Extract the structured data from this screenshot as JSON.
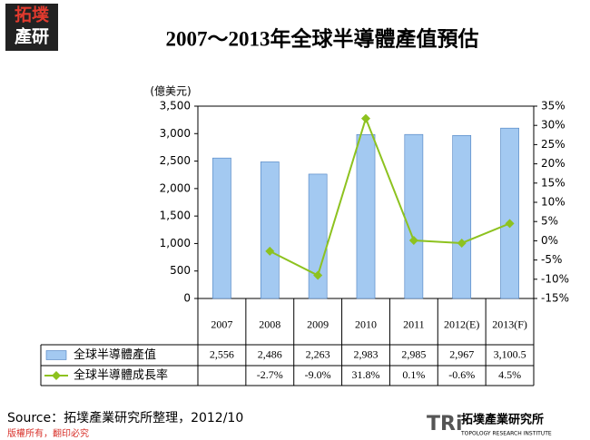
{
  "logo": [
    "拓墣",
    "產研"
  ],
  "chart_data": {
    "type": "bar-line",
    "title": "2007～2013年全球半導體產值預估",
    "y_label": "(億美元)",
    "categories": [
      "2007",
      "2008",
      "2009",
      "2010",
      "2011",
      "2012(E)",
      "2013(F)"
    ],
    "series": [
      {
        "name": "全球半導體產值",
        "type": "bar",
        "color": "#a3c9f1",
        "values": [
          2556,
          2486,
          2263,
          2983,
          2985,
          2967,
          3100.5
        ],
        "value_labels": [
          "2,556",
          "2,486",
          "2,263",
          "2,983",
          "2,985",
          "2,967",
          "3,100.5"
        ]
      },
      {
        "name": "全球半導體成長率",
        "type": "line",
        "axis": "y2",
        "color": "#8dc21f",
        "values": [
          null,
          -2.7,
          -9.0,
          31.8,
          0.1,
          -0.6,
          4.5
        ],
        "value_labels": [
          null,
          "-2.7%",
          "-9.0%",
          "31.8%",
          "0.1%",
          "-0.6%",
          "4.5%"
        ]
      }
    ],
    "ylim": [
      0,
      3500
    ],
    "yticks": [
      0,
      500,
      {
        "value": 1000,
        "label": "1,000"
      },
      {
        "value": 1500,
        "label": "1,500"
      },
      {
        "value": 2000,
        "label": "2,000"
      },
      {
        "value": 2500,
        "label": "2,500"
      },
      {
        "value": 3000,
        "label": "3,000"
      },
      {
        "value": 3500,
        "label": "3,500"
      }
    ],
    "y2lim": [
      -15,
      35
    ],
    "y2ticks": [
      {
        "value": -15,
        "label": "-15%"
      },
      {
        "value": -10,
        "label": "-10%"
      },
      {
        "value": -5,
        "label": "-5%"
      },
      {
        "value": 0,
        "label": "0%"
      },
      {
        "value": 5,
        "label": "5%"
      },
      {
        "value": 10,
        "label": "10%"
      },
      {
        "value": 15,
        "label": "15%"
      },
      {
        "value": 20,
        "label": "20%"
      },
      {
        "value": 25,
        "label": "25%"
      },
      {
        "value": 30,
        "label": "30%"
      },
      {
        "value": 35,
        "label": "35%"
      }
    ]
  },
  "footer": {
    "source": "Source：拓墣產業研究所整理，2012/10",
    "copyright": "版權所有，翻印必究",
    "brand": "TRi",
    "brand_name": "拓墣產業研究所",
    "brand_en": "TOPOLOGY RESEARCH INSTITUTE"
  }
}
